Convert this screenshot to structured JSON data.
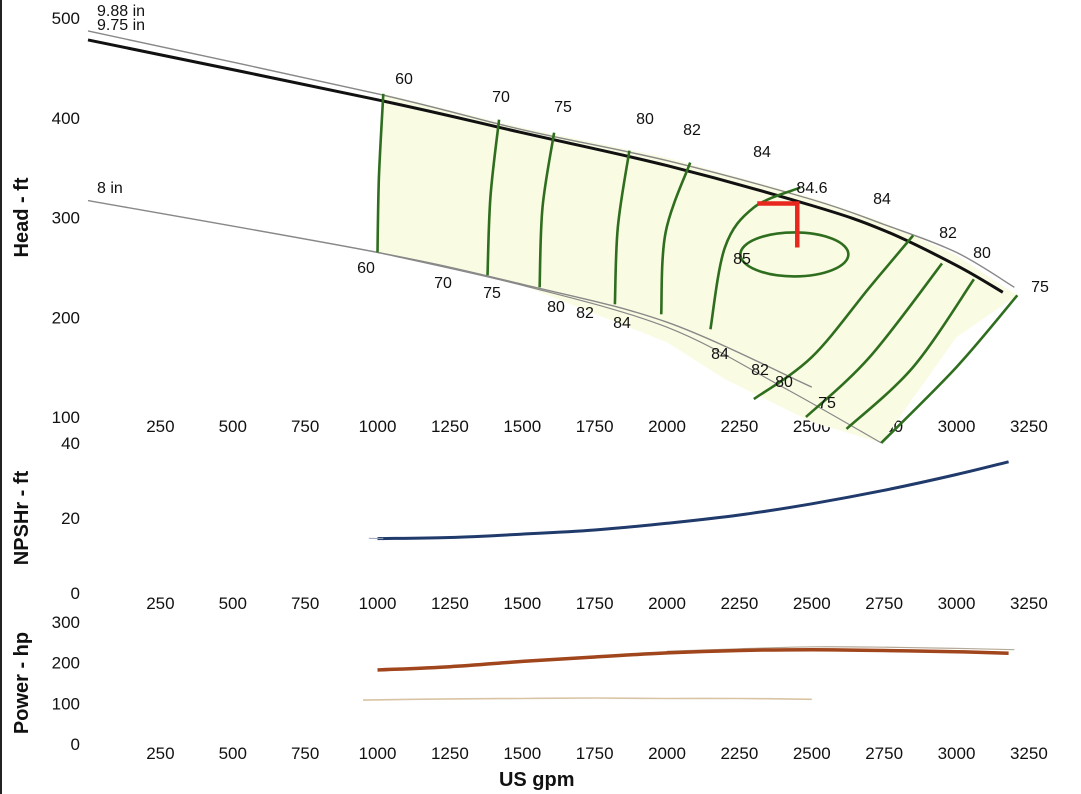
{
  "chart_data": [
    {
      "type": "line",
      "ylabel": "Head - ft",
      "xlim": [
        0,
        3250
      ],
      "ylim": [
        100,
        500
      ],
      "x_ticks": [
        "250",
        "500",
        "750",
        "1000",
        "1250",
        "1500",
        "1750",
        "2000",
        "2250",
        "2500",
        "2750",
        "3000",
        "3250"
      ],
      "y_ticks": [
        "100",
        "200",
        "300",
        "400",
        "500"
      ],
      "colors": {
        "region": "#fafbe3",
        "contour": "#2e6e1e",
        "curve": "#111111",
        "outline": "#888888",
        "bep": "#e8281e"
      },
      "series": [
        {
          "name": "9.88 in",
          "x": [
            0,
            1000,
            1500,
            2000,
            2500,
            2750,
            3000,
            3200
          ],
          "y": [
            487,
            424,
            388,
            357,
            318,
            293,
            265,
            230
          ]
        },
        {
          "name": "9.75 in",
          "x": [
            0,
            1000,
            1500,
            2000,
            2500,
            2750,
            3000,
            3160
          ],
          "y": [
            478,
            418,
            385,
            352,
            312,
            287,
            252,
            225
          ]
        },
        {
          "name": "8 in",
          "x": [
            0,
            1000,
            1500,
            2000,
            2500
          ],
          "y": [
            317,
            265,
            233,
            195,
            130
          ]
        }
      ],
      "efficiency_contours": [
        {
          "label": "60",
          "points": [
            [
              1000,
              265
            ],
            [
              1020,
              424
            ]
          ]
        },
        {
          "label": "70",
          "points": [
            [
              1380,
              242
            ],
            [
              1420,
              398
            ]
          ]
        },
        {
          "label": "75",
          "points": [
            [
              1560,
              230
            ],
            [
              1600,
              385
            ]
          ]
        },
        {
          "label": "80",
          "points": [
            [
              1820,
              213
            ],
            [
              1860,
              367
            ]
          ]
        },
        {
          "label": "82",
          "points": [
            [
              1980,
              202
            ],
            [
              2060,
              355
            ]
          ]
        },
        {
          "label": "84",
          "points": [
            [
              2150,
              187
            ],
            [
              2470,
              328
            ],
            [
              2300,
              118
            ],
            [
              2750,
              283
            ]
          ]
        },
        {
          "label": "84.6",
          "points": [
            [
              2510,
              311
            ]
          ]
        },
        {
          "label": "85",
          "points": [
            [
              2450,
              263
            ]
          ]
        },
        {
          "label": "84",
          "points": [
            [
              2300,
              118
            ],
            [
              2850,
              281
            ]
          ]
        },
        {
          "label": "82",
          "points": [
            [
              2480,
              102
            ],
            [
              2950,
              254
            ]
          ]
        },
        {
          "label": "80",
          "points": [
            [
              2620,
              88
            ],
            [
              3060,
              239
            ]
          ]
        },
        {
          "label": "75",
          "points": [
            [
              2740,
              74
            ],
            [
              3210,
              222
            ]
          ]
        }
      ],
      "bep_marker": {
        "x": 2450,
        "y": 290
      }
    },
    {
      "type": "line",
      "ylabel": "NPSHr - ft",
      "xlim": [
        0,
        3250
      ],
      "ylim": [
        0,
        40
      ],
      "x_ticks": [
        "250",
        "500",
        "750",
        "1000",
        "1250",
        "1500",
        "1750",
        "2000",
        "2250",
        "2500",
        "2750",
        "3000",
        "3250"
      ],
      "y_ticks": [
        "0",
        "20",
        "40"
      ],
      "colors": {
        "line": "#1f3a6b"
      },
      "series": [
        {
          "name": "NPSHr",
          "x": [
            1000,
            1250,
            1500,
            1750,
            2000,
            2250,
            2500,
            2750,
            3000,
            3180
          ],
          "y": [
            14.5,
            14.8,
            15.7,
            16.8,
            18.6,
            20.8,
            23.8,
            27.4,
            31.6,
            35
          ]
        }
      ]
    },
    {
      "type": "line",
      "ylabel": "Power - hp",
      "xlabel": "US gpm",
      "xlim": [
        0,
        3250
      ],
      "ylim": [
        0,
        300
      ],
      "x_ticks": [
        "250",
        "500",
        "750",
        "1000",
        "1250",
        "1500",
        "1750",
        "2000",
        "2250",
        "2500",
        "2750",
        "3000",
        "3250"
      ],
      "y_ticks": [
        "0",
        "100",
        "200",
        "300"
      ],
      "colors": {
        "main": "#a0451c",
        "secondary": "#d8c4a4"
      },
      "series": [
        {
          "name": "9.75 in",
          "x": [
            1000,
            1250,
            1500,
            1750,
            2000,
            2250,
            2500,
            2750,
            3000,
            3180
          ],
          "y": [
            182,
            190,
            203,
            214,
            224,
            230,
            232,
            230,
            227,
            223
          ]
        },
        {
          "name": "9.88 in",
          "x": [
            2000,
            2250,
            2500,
            2750,
            3000,
            3200
          ],
          "y": [
            228,
            234,
            239,
            238,
            235,
            232
          ]
        },
        {
          "name": "8 in",
          "x": [
            950,
            1250,
            1500,
            1750,
            2000,
            2250,
            2500
          ],
          "y": [
            108,
            111,
            112,
            113,
            112,
            112,
            110
          ]
        }
      ]
    }
  ]
}
